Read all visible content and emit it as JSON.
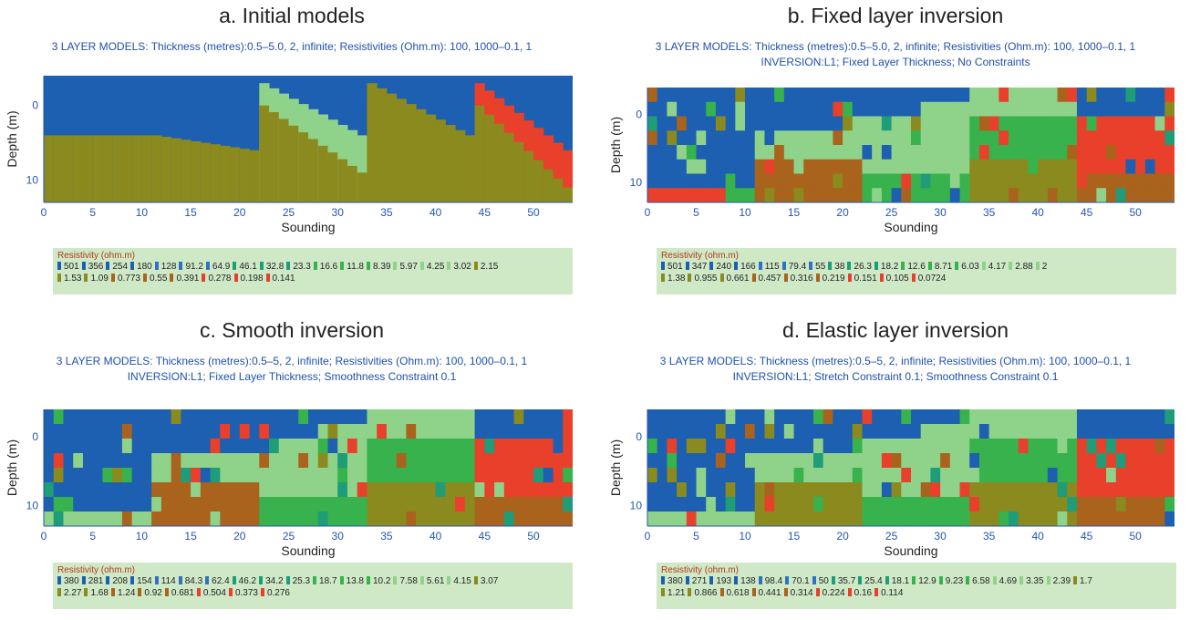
{
  "colors": {
    "blue": "#1d5fb0",
    "lightblue": "#2f72c0",
    "teal": "#1f9c78",
    "green": "#37b24c",
    "lightgreen": "#8fd38a",
    "olive": "#8b8a1e",
    "brown": "#a9631c",
    "red": "#e8402a",
    "axis": "#2455b4",
    "legendbg": "#cfe9c7"
  },
  "chart_data": [
    {
      "type": "heatmap",
      "panel_title": "a. Initial models",
      "subtitle_lines": [
        "3 LAYER MODELS: Thickness (metres):0.5–5.0, 2, infinite;  Resistivities (Ohm.m): 100, 1000–0.1, 1"
      ],
      "xlabel": "Sounding",
      "ylabel": "Depth (m)",
      "xlim": [
        0,
        54
      ],
      "ylim": [
        -4,
        13
      ],
      "xticks": [
        "0",
        "5",
        "10",
        "15",
        "20",
        "25",
        "30",
        "35",
        "40",
        "45",
        "50"
      ],
      "yticks": [
        "0",
        "10"
      ],
      "segments": [
        {
          "x": [
            0,
            11
          ],
          "layer2_top_depth": [
            4,
            4
          ],
          "layer1_thickness": [
            0.5,
            5.0
          ],
          "layer2_color": "blue"
        },
        {
          "x": [
            11,
            22
          ],
          "layer2_top_depth": [
            4,
            6
          ],
          "layer1_thickness": [
            0.5,
            5.0
          ],
          "layer2_color": "blue"
        },
        {
          "x": [
            22,
            33
          ],
          "layer2_top_depth": [
            -3,
            4
          ],
          "layer1_thickness": [
            0.5,
            5.0
          ],
          "layer2_color": "lightgreen"
        },
        {
          "x": [
            33,
            44
          ],
          "layer2_top_depth": [
            -3,
            4
          ],
          "layer1_thickness": [
            0.5,
            5.0
          ],
          "layer2_color": "olive"
        },
        {
          "x": [
            44,
            54
          ],
          "layer2_top_depth": [
            -3,
            6
          ],
          "layer1_thickness": [
            0.5,
            5.0
          ],
          "layer2_color": "red"
        }
      ],
      "legend": {
        "title": "Resistivity (ohm.m)",
        "rows": [
          [
            "501",
            "356",
            "254",
            "180",
            "128",
            "91.2",
            "64.9",
            "46.1",
            "32.8",
            "23.3",
            "16.6",
            "11.8",
            "8.39",
            "5.97",
            "4.25",
            "3.02",
            "2.15"
          ],
          [
            "1.53",
            "1.09",
            "0.773",
            "0.55",
            "0.391",
            "0.278",
            "0.198",
            "0.141"
          ]
        ]
      }
    },
    {
      "type": "heatmap",
      "panel_title": "b. Fixed layer inversion",
      "subtitle_lines": [
        "3 LAYER MODELS: Thickness (metres):0.5–5.0, 2, infinite;  Resistivities (Ohm.m): 100, 1000–0.1, 1",
        "INVERSION:L1; Fixed Layer Thickness; No Constraints"
      ],
      "xlabel": "Sounding",
      "ylabel": "Depth (m)",
      "xlim": [
        0,
        54
      ],
      "ylim": [
        -4,
        13
      ],
      "xticks": [
        "0",
        "5",
        "10",
        "15",
        "20",
        "25",
        "30",
        "35",
        "40",
        "45",
        "50"
      ],
      "yticks": [
        "0",
        "10"
      ],
      "legend": {
        "title": "Resistivity (ohm.m)",
        "rows": [
          [
            "501",
            "347",
            "240",
            "166",
            "115",
            "79.4",
            "55",
            "38",
            "26.3",
            "18.2",
            "12.6",
            "8.71",
            "6.03",
            "4.17",
            "2.88",
            "2"
          ],
          [
            "1.38",
            "0.955",
            "0.661",
            "0.457",
            "0.316",
            "0.219",
            "0.151",
            "0.105",
            "0.0724"
          ]
        ]
      }
    },
    {
      "type": "heatmap",
      "panel_title": "c. Smooth inversion",
      "subtitle_lines": [
        "3 LAYER MODELS: Thickness (metres):0.5–5, 2, infinite;  Resistivities (Ohm.m): 100, 1000–0.1, 1",
        "INVERSION:L1; Fixed Layer Thickness; Smoothness Constraint 0.1"
      ],
      "xlabel": "Sounding",
      "ylabel": "Depth (m)",
      "xlim": [
        0,
        54
      ],
      "ylim": [
        -4,
        13
      ],
      "xticks": [
        "0",
        "5",
        "10",
        "15",
        "20",
        "25",
        "30",
        "35",
        "40",
        "45",
        "50"
      ],
      "yticks": [
        "0",
        "10"
      ],
      "legend": {
        "title": "Resistivity (ohm.m)",
        "rows": [
          [
            "380",
            "281",
            "208",
            "154",
            "114",
            "84.3",
            "62.4",
            "46.2",
            "34.2",
            "25.3",
            "18.7",
            "13.8",
            "10.2",
            "7.58",
            "5.61",
            "4.15",
            "3.07"
          ],
          [
            "2.27",
            "1.68",
            "1.24",
            "0.92",
            "0.681",
            "0.504",
            "0.373",
            "0.276"
          ]
        ]
      }
    },
    {
      "type": "heatmap",
      "panel_title": "d. Elastic layer inversion",
      "subtitle_lines": [
        "3 LAYER MODELS: Thickness (metres):0.5–5, 2, infinite;  Resistivities (Ohm.m): 100, 1000–0.1, 1",
        "INVERSION:L1; Stretch Constraint 0.1; Smoothness Constraint 0.1"
      ],
      "xlabel": "Sounding",
      "ylabel": "Depth (m)",
      "xlim": [
        0,
        54
      ],
      "ylim": [
        -4,
        13
      ],
      "xticks": [
        "0",
        "5",
        "10",
        "15",
        "20",
        "25",
        "30",
        "35",
        "40",
        "45",
        "50"
      ],
      "yticks": [
        "0",
        "10"
      ],
      "legend": {
        "title": "Resistivity (ohm.m)",
        "rows": [
          [
            "380",
            "271",
            "193",
            "138",
            "98.4",
            "70.1",
            "50",
            "35.7",
            "25.4",
            "18.1",
            "12.9",
            "9.23",
            "6.58",
            "4.69",
            "3.35",
            "2.39",
            "1.7"
          ],
          [
            "1.21",
            "0.866",
            "0.618",
            "0.441",
            "0.314",
            "0.224",
            "0.16",
            "0.114"
          ]
        ]
      }
    }
  ]
}
